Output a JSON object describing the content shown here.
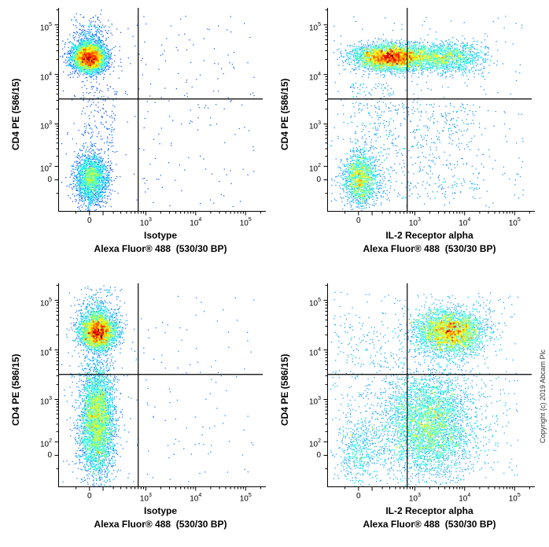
{
  "figure": {
    "copyright": "Copyright (c) 2019 Abcam Plc"
  },
  "axis_config": {
    "scale": "biexponential-arcsinh",
    "arcsinh_cofactor": 150,
    "axis_min": -300,
    "axis_max": 220000,
    "x_major_ticks": [
      {
        "value": 0,
        "label": "0"
      },
      {
        "value": 1000,
        "label": "10^3"
      },
      {
        "value": 10000,
        "label": "10^4"
      },
      {
        "value": 100000,
        "label": "10^5"
      }
    ],
    "y_major_ticks": [
      {
        "value": 0,
        "label": "0"
      },
      {
        "value": 100,
        "label": "10^2"
      },
      {
        "value": 1000,
        "label": "10^3"
      },
      {
        "value": 10000,
        "label": "10^4"
      },
      {
        "value": 100000,
        "label": "10^5"
      }
    ],
    "minor_tick_values": [
      -100,
      100,
      200,
      300,
      400,
      500,
      600,
      700,
      800,
      900,
      2000,
      3000,
      4000,
      5000,
      6000,
      7000,
      8000,
      9000,
      20000,
      30000,
      40000,
      50000,
      60000,
      70000,
      80000,
      90000,
      200000
    ],
    "colormap": "jet-density",
    "density_color_low": "#00008f",
    "density_color_high": "#b40000",
    "gate_line_color": "#000000"
  },
  "chart_data": [
    {
      "type": "scatter",
      "panel": "top-left",
      "xlabel_line1": "Isotype",
      "xlabel_line2": "Alexa Fluor® 488  (530/30 BP)",
      "ylabel": "CD4 PE (586/15)",
      "gates": {
        "x": 700,
        "y": 3200
      },
      "populations": [
        {
          "kind": "gauss",
          "name": "cd4-positive",
          "n": 4200,
          "cx": 0,
          "cy": 22000,
          "sx": 0.38,
          "sy": 0.34
        },
        {
          "kind": "gauss",
          "name": "cd4-positive-high-tail",
          "n": 260,
          "cx": 0,
          "cy": 60000,
          "sx": 0.45,
          "sy": 0.5
        },
        {
          "kind": "gauss",
          "name": "cd4-negative",
          "n": 2000,
          "cx": 15,
          "cy": 10,
          "sx": 0.38,
          "sy": 0.6
        },
        {
          "kind": "uniform",
          "name": "bridge",
          "n": 160,
          "x_range": [
            -60,
            250
          ],
          "y_range": [
            250,
            6000
          ]
        },
        {
          "kind": "uniform",
          "name": "sparse-background",
          "n": 240,
          "x_range": [
            -250,
            150000
          ],
          "y_range": [
            -250,
            150000
          ]
        }
      ]
    },
    {
      "type": "scatter",
      "panel": "top-right",
      "xlabel_line1": "IL-2 Receptor alpha",
      "xlabel_line2": "Alexa Fluor® 488  (530/30 BP)",
      "ylabel": "CD4 PE (586/15)",
      "gates": {
        "x": 700,
        "y": 3200
      },
      "populations": [
        {
          "kind": "gauss",
          "name": "cd4-pos-band-core",
          "n": 3600,
          "cx": 300,
          "cy": 22000,
          "sx": 0.8,
          "sy": 0.3
        },
        {
          "kind": "gauss",
          "name": "cd4-pos-band-ext",
          "n": 1300,
          "cx": 2800,
          "cy": 22000,
          "sx": 0.85,
          "sy": 0.33
        },
        {
          "kind": "gauss",
          "name": "cd4-pos-band-tail",
          "n": 300,
          "cx": 10000,
          "cy": 22000,
          "sx": 0.6,
          "sy": 0.4
        },
        {
          "kind": "gauss",
          "name": "cd4-negative",
          "n": 1600,
          "cx": 15,
          "cy": 10,
          "sx": 0.4,
          "sy": 0.62
        },
        {
          "kind": "uniform",
          "name": "lower-right-cloud",
          "n": 420,
          "x_range": [
            120,
            20000
          ],
          "y_range": [
            -150,
            2800
          ]
        },
        {
          "kind": "uniform",
          "name": "bridge",
          "n": 160,
          "x_range": [
            -60,
            400
          ],
          "y_range": [
            250,
            7000
          ]
        },
        {
          "kind": "uniform",
          "name": "sparse-background",
          "n": 260,
          "x_range": [
            -250,
            150000
          ],
          "y_range": [
            -250,
            150000
          ]
        }
      ]
    },
    {
      "type": "scatter",
      "panel": "bottom-left",
      "xlabel_line1": "Isotype",
      "xlabel_line2": "Alexa Fluor® 488  (530/30 BP)",
      "ylabel": "CD4 PE (586/15)",
      "gates": {
        "x": 700,
        "y": 3200
      },
      "populations": [
        {
          "kind": "gauss",
          "name": "cd4-positive",
          "n": 3200,
          "cx": 60,
          "cy": 23000,
          "sx": 0.42,
          "sy": 0.42
        },
        {
          "kind": "gauss",
          "name": "cd4-positive-high-tail",
          "n": 300,
          "cx": 60,
          "cy": 65000,
          "sx": 0.5,
          "sy": 0.5
        },
        {
          "kind": "gauss",
          "name": "cd4-negative-smear",
          "n": 4000,
          "cx": 55,
          "cy": 350,
          "sx": 0.4,
          "sy": 1.35
        },
        {
          "kind": "uniform",
          "name": "sparse-background",
          "n": 170,
          "x_range": [
            -250,
            150000
          ],
          "y_range": [
            -250,
            150000
          ]
        }
      ]
    },
    {
      "type": "scatter",
      "panel": "bottom-right",
      "xlabel_line1": "IL-2 Receptor alpha",
      "xlabel_line2": "Alexa Fluor® 488  (530/30 BP)",
      "ylabel": "CD4 PE (586/15)",
      "gates": {
        "x": 700,
        "y": 3200
      },
      "populations": [
        {
          "kind": "gauss",
          "name": "cd4-pos-il2r-pos",
          "n": 3200,
          "cx": 5000,
          "cy": 23000,
          "sx": 0.8,
          "sy": 0.5
        },
        {
          "kind": "gauss",
          "name": "cd4-neg-il2r-cloud",
          "n": 3800,
          "cx": 2000,
          "cy": 300,
          "sx": 1.0,
          "sy": 1.2
        },
        {
          "kind": "gauss",
          "name": "left-low",
          "n": 450,
          "cx": 10,
          "cy": 30,
          "sx": 0.5,
          "sy": 0.8
        },
        {
          "kind": "uniform",
          "name": "left-bridge",
          "n": 220,
          "x_range": [
            -80,
            600
          ],
          "y_range": [
            -100,
            30000
          ]
        },
        {
          "kind": "uniform",
          "name": "sparse-background",
          "n": 650,
          "x_range": [
            -250,
            120000
          ],
          "y_range": [
            -250,
            150000
          ]
        }
      ]
    }
  ]
}
